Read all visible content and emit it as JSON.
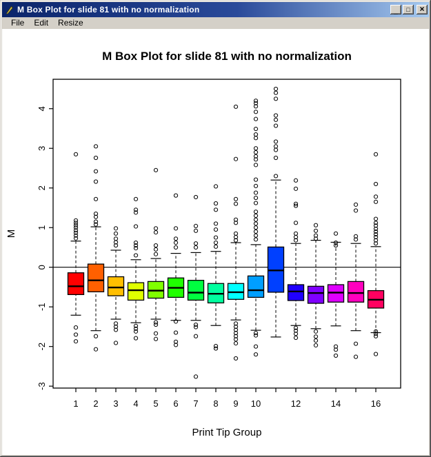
{
  "window": {
    "title": "M Box Plot for slide 81 with no normalization",
    "controls": {
      "minimize": "_",
      "maximize": "□",
      "close": "×"
    },
    "menu": [
      "File",
      "Edit",
      "Resize"
    ]
  },
  "chart_data": {
    "type": "boxplot",
    "title": "M Box Plot for slide 81 with no normalization",
    "xlabel": "Print Tip Group",
    "ylabel": "M",
    "ylim": [
      -3.1,
      4.8
    ],
    "yticks": [
      -3,
      -2,
      -1,
      0,
      1,
      2,
      3,
      4
    ],
    "reference_line_y": 0,
    "grid": false,
    "groups": [
      {
        "tick": "1",
        "color": "#FF0000",
        "q1": -0.69,
        "median": -0.48,
        "q3": -0.14,
        "whisker_low": -1.21,
        "whisker_high": 0.66,
        "outliers_high": [
          2.85,
          1.18,
          1.12,
          1.06,
          1.0,
          0.93,
          0.87,
          0.8,
          0.73
        ],
        "outliers_low": [
          -1.52,
          -1.7,
          -1.87
        ]
      },
      {
        "tick": "2",
        "color": "#FF6000",
        "q1": -0.62,
        "median": -0.33,
        "q3": 0.08,
        "whisker_low": -1.6,
        "whisker_high": 1.02,
        "outliers_high": [
          3.05,
          2.76,
          2.42,
          2.16,
          1.72,
          1.35,
          1.27,
          1.15,
          1.08
        ],
        "outliers_low": [
          -1.74,
          -2.07
        ]
      },
      {
        "tick": "3",
        "color": "#FFBF00",
        "q1": -0.72,
        "median": -0.51,
        "q3": -0.24,
        "whisker_low": -1.31,
        "whisker_high": 0.43,
        "outliers_high": [
          0.98,
          0.85,
          0.72,
          0.63,
          0.55
        ],
        "outliers_low": [
          -1.42,
          -1.5,
          -1.58,
          -1.91
        ]
      },
      {
        "tick": "4",
        "color": "#DFFF00",
        "q1": -0.83,
        "median": -0.58,
        "q3": -0.39,
        "whisker_low": -1.4,
        "whisker_high": 0.19,
        "outliers_high": [
          1.72,
          1.45,
          1.38,
          1.03,
          0.62,
          0.55,
          0.48,
          0.3
        ],
        "outliers_low": [
          -1.48,
          -1.55,
          -1.62,
          -1.79
        ]
      },
      {
        "tick": "5",
        "color": "#80FF00",
        "q1": -0.78,
        "median": -0.59,
        "q3": -0.36,
        "whisker_low": -1.31,
        "whisker_high": 0.22,
        "outliers_high": [
          2.45,
          0.98,
          0.88,
          0.55,
          0.45,
          0.33
        ],
        "outliers_low": [
          -1.39,
          -1.45,
          -1.67,
          -1.81
        ]
      },
      {
        "tick": "6",
        "color": "#20FF00",
        "q1": -0.76,
        "median": -0.52,
        "q3": -0.27,
        "whisker_low": -1.34,
        "whisker_high": 0.35,
        "outliers_high": [
          1.81,
          0.98,
          0.72,
          0.62,
          0.5
        ],
        "outliers_low": [
          -1.37,
          -1.65,
          -1.88,
          -1.96
        ]
      },
      {
        "tick": "7",
        "color": "#00FF40",
        "q1": -0.83,
        "median": -0.64,
        "q3": -0.33,
        "whisker_low": -1.34,
        "whisker_high": 0.37,
        "outliers_high": [
          1.77,
          1.04,
          0.92,
          0.6,
          0.5
        ],
        "outliers_low": [
          -1.45,
          -1.51,
          -1.74,
          -2.76
        ]
      },
      {
        "tick": "8",
        "color": "#00FF9F",
        "q1": -0.9,
        "median": -0.67,
        "q3": -0.41,
        "whisker_low": -1.47,
        "whisker_high": 0.4,
        "outliers_high": [
          2.04,
          1.61,
          1.45,
          1.1,
          0.95,
          0.75,
          0.62,
          0.52
        ],
        "outliers_low": [
          -1.99,
          -2.05
        ]
      },
      {
        "tick": "9",
        "color": "#00FFFF",
        "q1": -0.81,
        "median": -0.63,
        "q3": -0.41,
        "whisker_low": -1.33,
        "whisker_high": 0.62,
        "outliers_high": [
          4.05,
          2.73,
          1.72,
          1.6,
          1.2,
          1.12,
          0.85,
          0.76,
          0.68
        ],
        "outliers_low": [
          -1.42,
          -1.5,
          -1.58,
          -1.66,
          -1.74,
          -1.82,
          -1.92,
          -2.3
        ]
      },
      {
        "tick": "10",
        "color": "#009FFF",
        "q1": -0.76,
        "median": -0.58,
        "q3": -0.22,
        "whisker_low": -1.59,
        "whisker_high": 0.57,
        "outliers_high": [
          4.2,
          4.14,
          4.06,
          3.92,
          3.74,
          3.49,
          3.35,
          3.26,
          3.0,
          2.9,
          2.8,
          2.72,
          2.58,
          2.21,
          2.05,
          1.88,
          1.75,
          1.62,
          1.4,
          1.3,
          1.2,
          1.1,
          1.0,
          0.9,
          0.8,
          0.7
        ],
        "outliers_low": [
          -1.66,
          -1.72,
          -2.0,
          -2.2
        ]
      },
      {
        "tick": "",
        "color": "#0040FF",
        "q1": -0.63,
        "median": -0.08,
        "q3": 0.51,
        "whisker_low": -1.76,
        "whisker_high": 2.2,
        "outliers_high": [
          4.5,
          4.4,
          4.25,
          3.83,
          3.72,
          3.57,
          3.17,
          3.05,
          2.96,
          2.76,
          2.3
        ],
        "outliers_low": []
      },
      {
        "tick": "12",
        "color": "#2000FF",
        "q1": -0.84,
        "median": -0.61,
        "q3": -0.44,
        "whisker_low": -1.47,
        "whisker_high": 0.6,
        "outliers_high": [
          2.19,
          1.98,
          1.6,
          1.55,
          1.12,
          0.85,
          0.76,
          0.68
        ],
        "outliers_low": [
          -1.53,
          -1.6,
          -1.68,
          -1.78
        ]
      },
      {
        "tick": "",
        "color": "#8000FF",
        "q1": -0.91,
        "median": -0.65,
        "q3": -0.48,
        "whisker_low": -1.55,
        "whisker_high": 0.68,
        "outliers_high": [
          1.06,
          0.92,
          0.8,
          0.72
        ],
        "outliers_low": [
          -1.62,
          -1.75,
          -1.85,
          -1.97
        ]
      },
      {
        "tick": "14",
        "color": "#DF00FF",
        "q1": -0.88,
        "median": -0.64,
        "q3": -0.44,
        "whisker_low": -1.48,
        "whisker_high": 0.63,
        "outliers_high": [
          0.85,
          0.62,
          0.55
        ],
        "outliers_low": [
          -2.0,
          -2.08,
          -2.23
        ]
      },
      {
        "tick": "",
        "color": "#FF00BF",
        "q1": -0.88,
        "median": -0.65,
        "q3": -0.36,
        "whisker_low": -1.6,
        "whisker_high": 0.6,
        "outliers_high": [
          1.58,
          1.43,
          0.78,
          0.7
        ],
        "outliers_low": [
          -1.93,
          -2.26
        ]
      },
      {
        "tick": "16",
        "color": "#FF0060",
        "q1": -1.03,
        "median": -0.82,
        "q3": -0.59,
        "whisker_low": -1.65,
        "whisker_high": 0.52,
        "outliers_high": [
          2.85,
          2.1,
          1.78,
          1.65,
          1.22,
          1.12,
          1.05,
          0.97,
          0.9,
          0.83,
          0.76,
          0.68,
          0.6
        ],
        "outliers_low": [
          -1.62,
          -1.68,
          -1.74,
          -2.19
        ]
      }
    ]
  }
}
